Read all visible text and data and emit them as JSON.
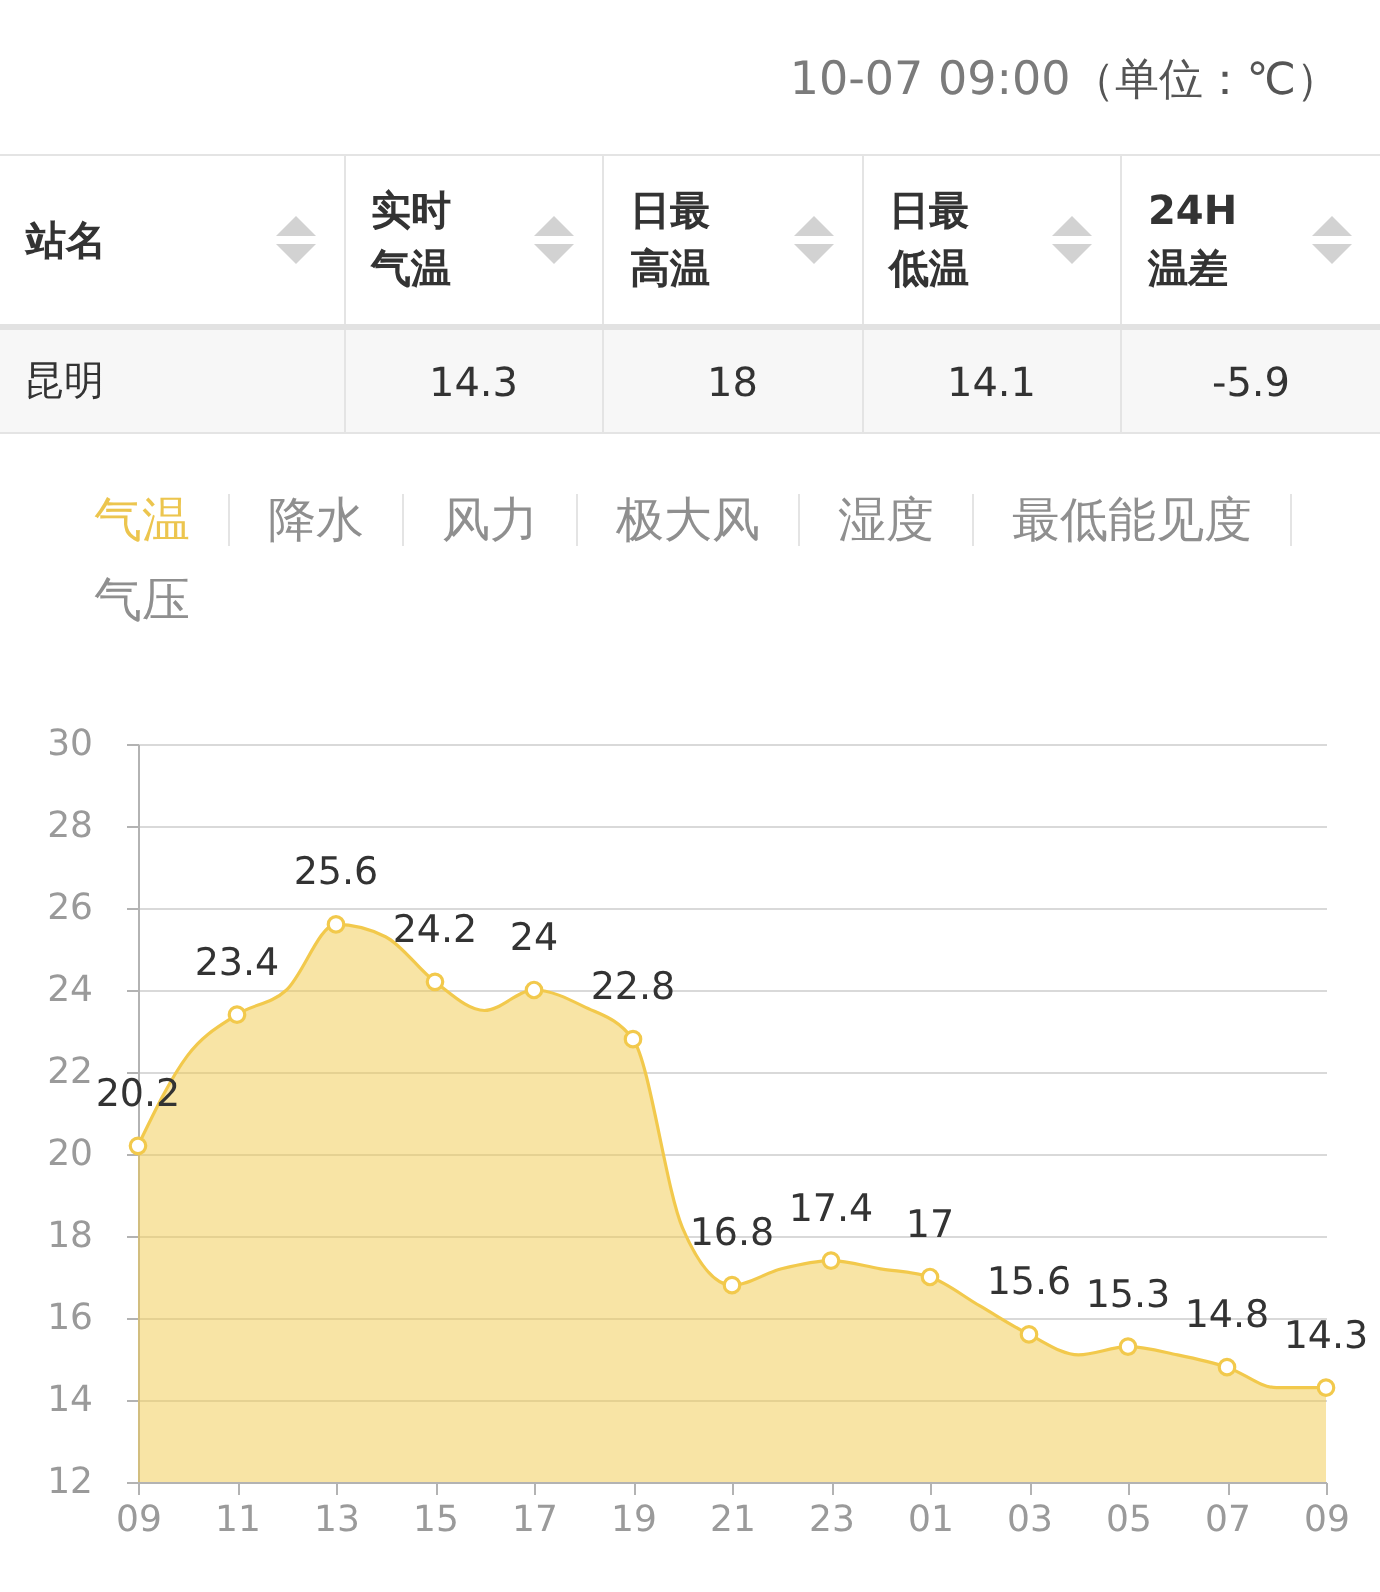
{
  "chart_data": [
    {
      "type": "other",
      "title": "10-07 09:00",
      "subtitle": "（单位：℃）",
      "ylabel": "站名",
      "categories": [
        "实时气温",
        "日最高温",
        "日最低温",
        "24H温差"
      ],
      "series": [
        {
          "name": "昆明",
          "values": [
            14.3,
            18,
            14.1,
            -5.9
          ]
        }
      ],
      "data_labels": true
    },
    {
      "type": "other",
      "categories": [
        "气温",
        "降水",
        "风力",
        "极大风",
        "湿度",
        "最低能见度",
        "气压"
      ],
      "colors": [
        "#ecc54e",
        "#8f8f8f",
        "#8f8f8f",
        "#8f8f8f",
        "#8f8f8f",
        "#8f8f8f",
        "#8f8f8f"
      ]
    },
    {
      "type": "area",
      "categories": [
        "09",
        null,
        "11",
        null,
        "13",
        null,
        "15",
        null,
        "17",
        null,
        "19",
        null,
        "21",
        null,
        "23",
        null,
        "01",
        null,
        "03",
        null,
        "05",
        null,
        "07",
        null,
        "09"
      ],
      "ylim": [
        12,
        30
      ],
      "yticks": [
        12,
        14,
        16,
        18,
        20,
        22,
        24,
        26,
        28,
        30
      ],
      "grid": "y",
      "series": [
        {
          "color": "#f2c94c",
          "values": [
            20.2,
            22.4,
            23.4,
            24,
            25.6,
            25.3,
            24.2,
            23.5,
            24,
            23.6,
            22.8,
            18.2,
            16.8,
            17.2,
            17.4,
            17.2,
            17,
            16.3,
            15.6,
            15.1,
            15.3,
            15.1,
            14.8,
            14.3,
            14.3
          ]
        },
        {
          "type": "scatter",
          "color": "#f2c94c",
          "values": [
            20.2,
            null,
            23.4,
            null,
            25.6,
            null,
            24.2,
            null,
            24,
            null,
            22.8,
            null,
            16.8,
            null,
            17.4,
            null,
            17,
            null,
            15.6,
            null,
            15.3,
            null,
            14.8,
            null,
            14.3
          ],
          "value_labels": [
            "20.2",
            null,
            "23.4",
            null,
            "25.6",
            null,
            "24.2",
            null,
            "24",
            null,
            "22.8",
            null,
            "16.8",
            null,
            "17.4",
            null,
            "17",
            null,
            "15.6",
            null,
            "15.3",
            null,
            "14.8",
            null,
            "14.3"
          ]
        }
      ]
    }
  ]
}
